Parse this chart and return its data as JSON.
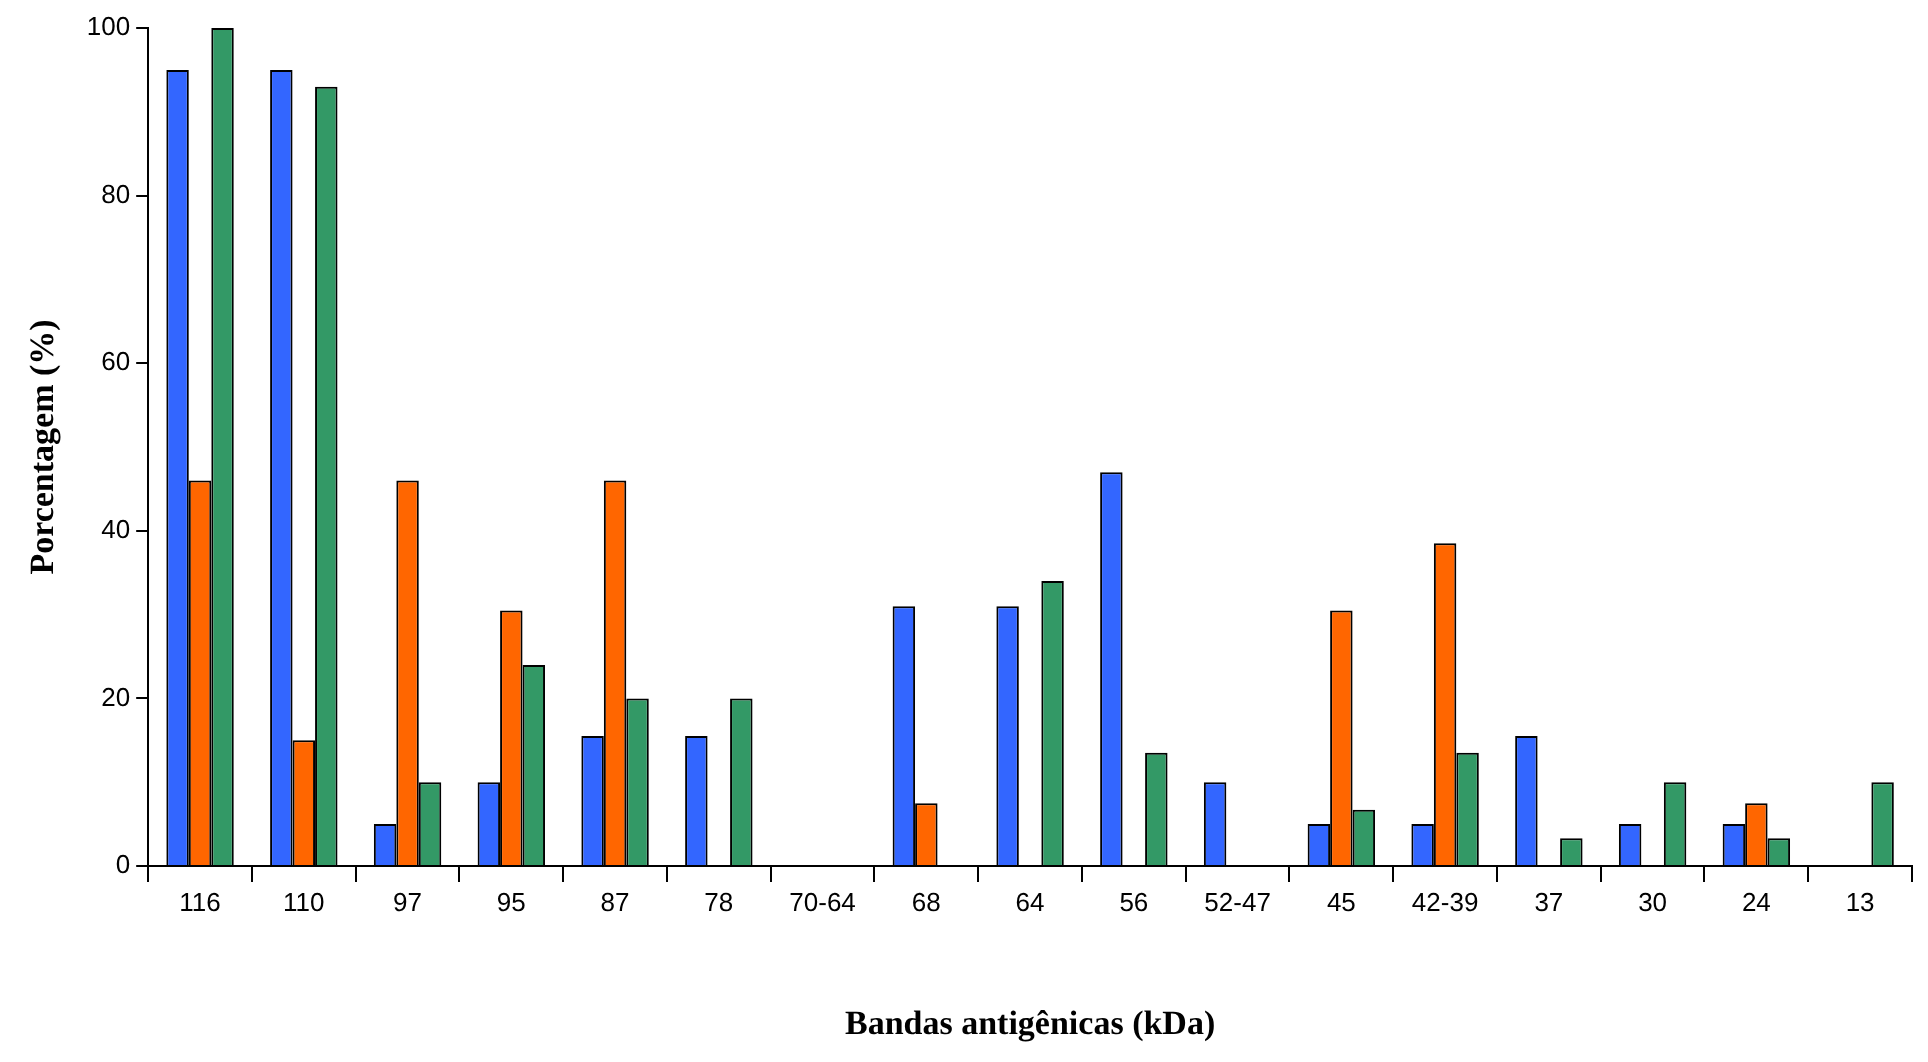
{
  "chart_data": {
    "type": "bar",
    "xlabel": "Bandas antigênicas (kDa)",
    "ylabel": "Porcentagem (%)",
    "categories": [
      "116",
      "110",
      "97",
      "95",
      "87",
      "78",
      "70-64",
      "68",
      "64",
      "56",
      "52-47",
      "45",
      "42-39",
      "37",
      "30",
      "24",
      "13"
    ],
    "series": [
      {
        "color": "#3366ff",
        "values": [
          95,
          95,
          5,
          10,
          15.5,
          15.5,
          0,
          31,
          31,
          47,
          10,
          5,
          5,
          15.5,
          5,
          5,
          0
        ]
      },
      {
        "color": "#ff6600",
        "values": [
          46,
          15,
          46,
          30.5,
          46,
          0,
          0,
          7.5,
          0,
          0,
          0,
          30.5,
          38.5,
          0,
          0,
          7.5,
          0
        ]
      },
      {
        "color": "#339966",
        "values": [
          100,
          93,
          10,
          24,
          20,
          20,
          0,
          0,
          34,
          13.5,
          0,
          6.7,
          13.5,
          3.3,
          10,
          3.3,
          10
        ]
      }
    ],
    "ylim": [
      0,
      100
    ],
    "yticks": [
      0,
      20,
      40,
      60,
      80,
      100
    ],
    "grid": false,
    "legend": false
  }
}
